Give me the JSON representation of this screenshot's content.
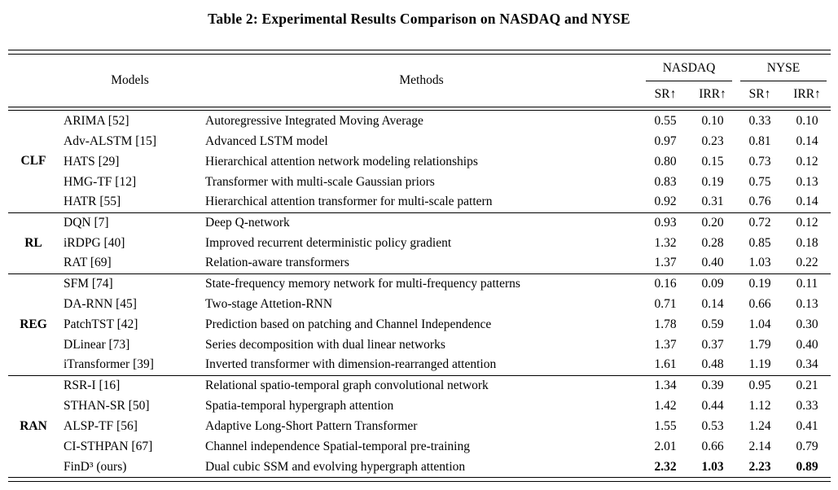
{
  "title": "Table 2: Experimental Results Comparison on NASDAQ and NYSE",
  "table": {
    "headers": {
      "models": "Models",
      "methods": "Methods",
      "exchange_groups": [
        {
          "label": "NASDAQ",
          "metrics": [
            "SR↑",
            "IRR↑"
          ]
        },
        {
          "label": "NYSE",
          "metrics": [
            "SR↑",
            "IRR↑"
          ]
        }
      ]
    },
    "groups": [
      {
        "label": "CLF",
        "rows": [
          {
            "model": "ARIMA [52]",
            "method": "Autoregressive Integrated Moving Average",
            "values": [
              "0.55",
              "0.10",
              "0.33",
              "0.10"
            ]
          },
          {
            "model": "Adv-ALSTM [15]",
            "method": "Advanced LSTM model",
            "values": [
              "0.97",
              "0.23",
              "0.81",
              "0.14"
            ]
          },
          {
            "model": "HATS [29]",
            "method": "Hierarchical attention network modeling relationships",
            "values": [
              "0.80",
              "0.15",
              "0.73",
              "0.12"
            ]
          },
          {
            "model": "HMG-TF [12]",
            "method": "Transformer with multi-scale Gaussian priors",
            "values": [
              "0.83",
              "0.19",
              "0.75",
              "0.13"
            ]
          },
          {
            "model": "HATR [55]",
            "method": "Hierarchical attention transformer for multi-scale pattern",
            "values": [
              "0.92",
              "0.31",
              "0.76",
              "0.14"
            ]
          }
        ]
      },
      {
        "label": "RL",
        "rows": [
          {
            "model": "DQN [7]",
            "method": "Deep Q-network",
            "values": [
              "0.93",
              "0.20",
              "0.72",
              "0.12"
            ]
          },
          {
            "model": "iRDPG [40]",
            "method": "Improved recurrent deterministic policy gradient",
            "values": [
              "1.32",
              "0.28",
              "0.85",
              "0.18"
            ]
          },
          {
            "model": "RAT [69]",
            "method": "Relation-aware transformers",
            "values": [
              "1.37",
              "0.40",
              "1.03",
              "0.22"
            ]
          }
        ]
      },
      {
        "label": "REG",
        "rows": [
          {
            "model": "SFM [74]",
            "method": "State-frequency memory network for multi-frequency patterns",
            "values": [
              "0.16",
              "0.09",
              "0.19",
              "0.11"
            ]
          },
          {
            "model": "DA-RNN [45]",
            "method": "Two-stage Attetion-RNN",
            "values": [
              "0.71",
              "0.14",
              "0.66",
              "0.13"
            ]
          },
          {
            "model": "PatchTST [42]",
            "method": "Prediction based on patching and Channel Independence",
            "values": [
              "1.78",
              "0.59",
              "1.04",
              "0.30"
            ]
          },
          {
            "model": "DLinear [73]",
            "method": "Series decomposition with dual linear networks",
            "values": [
              "1.37",
              "0.37",
              "1.79",
              "0.40"
            ]
          },
          {
            "model": "iTransformer [39]",
            "method": "Inverted transformer with dimension-rearranged attention",
            "values": [
              "1.61",
              "0.48",
              "1.19",
              "0.34"
            ]
          }
        ]
      },
      {
        "label": "RAN",
        "rows": [
          {
            "model": "RSR-I [16]",
            "method": "Relational spatio-temporal graph convolutional network",
            "values": [
              "1.34",
              "0.39",
              "0.95",
              "0.21"
            ]
          },
          {
            "model": "STHAN-SR [50]",
            "method": "Spatia-temporal hypergraph attention",
            "values": [
              "1.42",
              "0.44",
              "1.12",
              "0.33"
            ]
          },
          {
            "model": "ALSP-TF [56]",
            "method": "Adaptive Long-Short Pattern Transformer",
            "values": [
              "1.55",
              "0.53",
              "1.24",
              "0.41"
            ]
          },
          {
            "model": "CI-STHPAN [67]",
            "method": "Channel independence Spatial-temporal pre-training",
            "values": [
              "2.01",
              "0.66",
              "2.14",
              "0.79"
            ]
          },
          {
            "model": "FinD³ (ours)",
            "method": "Dual cubic SSM and evolving hypergraph attention",
            "values": [
              "2.32",
              "1.03",
              "2.23",
              "0.89"
            ],
            "bold": true
          }
        ]
      }
    ]
  }
}
